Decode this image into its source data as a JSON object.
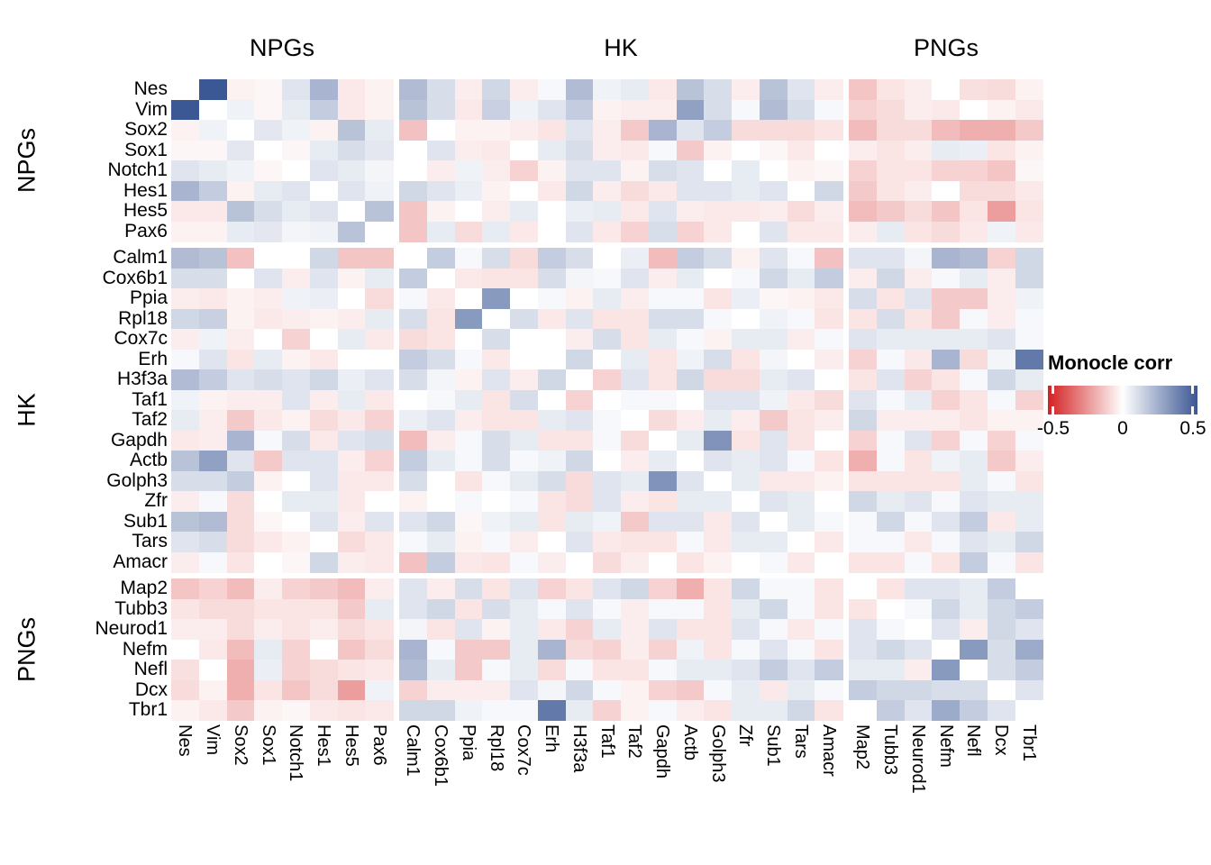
{
  "figure": {
    "top_group_labels": [
      "NPGs",
      "HK",
      "PNGs"
    ],
    "left_group_labels": [
      "NPGs",
      "HK",
      "PNGs"
    ]
  },
  "legend": {
    "title": "Monocle corr",
    "tick_labels": [
      "-0.5",
      "0",
      "0.5"
    ],
    "min_color": "#D32020",
    "mid_color": "#FFFFFF",
    "max_color": "#3B5794"
  },
  "chart_data": {
    "type": "heatmap",
    "title": "",
    "legend_title": "Monocle corr",
    "value_range": [
      -0.5,
      0.5
    ],
    "genes": [
      "Nes",
      "Vim",
      "Sox2",
      "Sox1",
      "Notch1",
      "Hes1",
      "Hes5",
      "Pax6",
      "Calm1",
      "Cox6b1",
      "Ppia",
      "Rpl18",
      "Cox7c",
      "Erh",
      "H3f3a",
      "Taf1",
      "Taf2",
      "Gapdh",
      "Actb",
      "Golph3",
      "Zfr",
      "Sub1",
      "Tars",
      "Amacr",
      "Map2",
      "Tubb3",
      "Neurod1",
      "Nefm",
      "Nefl",
      "Dcx",
      "Tbr1"
    ],
    "groups": [
      {
        "name": "NPGs",
        "genes": [
          "Nes",
          "Vim",
          "Sox2",
          "Sox1",
          "Notch1",
          "Hes1",
          "Hes5",
          "Pax6"
        ]
      },
      {
        "name": "HK",
        "genes": [
          "Calm1",
          "Cox6b1",
          "Ppia",
          "Rpl18",
          "Cox7c",
          "Erh",
          "H3f3a",
          "Taf1",
          "Taf2",
          "Gapdh",
          "Actb",
          "Golph3",
          "Zfr",
          "Sub1",
          "Tars",
          "Amacr"
        ]
      },
      {
        "name": "PNGs",
        "genes": [
          "Map2",
          "Tubb3",
          "Neurod1",
          "Nefm",
          "Nefl",
          "Dcx",
          "Tbr1"
        ]
      }
    ],
    "matrix": [
      [
        0,
        0.52,
        -0.03,
        -0.02,
        0.08,
        0.22,
        -0.05,
        -0.03,
        0.2,
        0.1,
        -0.04,
        0.12,
        -0.04,
        0.02,
        0.2,
        0.04,
        0.06,
        -0.05,
        0.18,
        0.1,
        -0.04,
        0.18,
        0.08,
        -0.04,
        -0.13,
        -0.06,
        -0.04,
        0.0,
        -0.07,
        -0.08,
        -0.03
      ],
      [
        0.52,
        0,
        0.04,
        -0.02,
        0.06,
        0.15,
        -0.05,
        -0.03,
        0.18,
        0.1,
        -0.05,
        0.14,
        0.04,
        0.08,
        0.15,
        -0.03,
        -0.04,
        -0.04,
        0.28,
        0.1,
        0.02,
        0.2,
        0.1,
        0.02,
        -0.1,
        -0.08,
        -0.04,
        -0.05,
        0.0,
        -0.03,
        -0.05
      ],
      [
        -0.03,
        0.04,
        0,
        0.07,
        0.04,
        -0.03,
        0.18,
        0.06,
        -0.14,
        0.0,
        -0.03,
        -0.03,
        -0.04,
        -0.06,
        0.08,
        -0.04,
        -0.12,
        0.22,
        0.08,
        0.15,
        -0.08,
        -0.08,
        -0.08,
        -0.06,
        -0.15,
        -0.08,
        -0.08,
        -0.15,
        -0.18,
        -0.18,
        -0.12
      ],
      [
        -0.02,
        -0.02,
        0.07,
        0,
        -0.02,
        0.06,
        0.1,
        0.07,
        0.0,
        0.08,
        -0.04,
        -0.05,
        0.0,
        0.06,
        0.1,
        -0.04,
        -0.05,
        0.02,
        -0.12,
        -0.03,
        0.0,
        -0.02,
        -0.05,
        0.0,
        -0.04,
        -0.06,
        -0.04,
        0.06,
        0.05,
        -0.06,
        -0.03
      ],
      [
        0.08,
        0.06,
        0.04,
        -0.02,
        0,
        0.08,
        0.06,
        0.03,
        0.0,
        -0.04,
        0.04,
        -0.04,
        -0.1,
        -0.03,
        0.08,
        0.08,
        -0.03,
        0.1,
        0.08,
        0.0,
        0.06,
        0.0,
        -0.03,
        -0.02,
        -0.1,
        -0.06,
        -0.06,
        -0.1,
        -0.1,
        -0.13,
        -0.02
      ],
      [
        0.22,
        0.15,
        -0.03,
        0.06,
        0.08,
        0,
        0.08,
        0.04,
        0.12,
        0.08,
        0.05,
        -0.03,
        0.0,
        -0.05,
        0.12,
        -0.04,
        -0.08,
        -0.05,
        0.08,
        0.08,
        0.06,
        0.08,
        0.0,
        0.12,
        -0.12,
        -0.06,
        -0.04,
        0.0,
        -0.08,
        -0.08,
        -0.05
      ],
      [
        -0.05,
        -0.05,
        0.18,
        0.1,
        0.06,
        0.08,
        0,
        0.18,
        -0.13,
        -0.03,
        0.0,
        -0.04,
        0.06,
        0.0,
        0.05,
        0.06,
        -0.05,
        0.08,
        -0.04,
        -0.05,
        -0.05,
        -0.04,
        -0.08,
        -0.04,
        -0.15,
        -0.12,
        -0.08,
        -0.13,
        -0.06,
        -0.22,
        -0.06
      ],
      [
        -0.03,
        -0.03,
        0.06,
        0.07,
        0.03,
        0.04,
        0.18,
        0,
        -0.13,
        0.06,
        -0.08,
        0.06,
        -0.05,
        0.0,
        0.08,
        -0.05,
        -0.1,
        0.1,
        -0.1,
        -0.05,
        0.0,
        0.08,
        -0.05,
        -0.05,
        -0.04,
        0.06,
        -0.06,
        -0.08,
        -0.05,
        0.04,
        -0.05
      ],
      [
        0.2,
        0.18,
        -0.14,
        0.0,
        0.0,
        0.12,
        -0.13,
        -0.13,
        0,
        0.15,
        0.02,
        0.1,
        -0.08,
        0.15,
        0.1,
        0.0,
        0.05,
        -0.15,
        0.15,
        0.1,
        -0.03,
        0.08,
        0.02,
        -0.14,
        0.08,
        0.08,
        0.03,
        0.22,
        0.2,
        -0.1,
        0.12
      ],
      [
        0.1,
        0.1,
        0.0,
        0.08,
        -0.04,
        0.08,
        -0.03,
        0.06,
        0.15,
        0,
        -0.05,
        -0.06,
        -0.06,
        0.1,
        0.03,
        0.02,
        0.08,
        -0.04,
        0.06,
        0.0,
        0.02,
        0.12,
        0.06,
        0.15,
        -0.04,
        0.12,
        -0.04,
        0.02,
        0.06,
        -0.04,
        0.12
      ],
      [
        -0.04,
        -0.05,
        -0.03,
        -0.04,
        0.04,
        0.05,
        0.0,
        -0.08,
        0.02,
        -0.05,
        0,
        0.3,
        0.0,
        0.02,
        -0.03,
        0.06,
        -0.04,
        0.02,
        0.02,
        -0.06,
        0.05,
        -0.02,
        -0.03,
        -0.05,
        0.1,
        -0.06,
        0.08,
        -0.12,
        -0.12,
        -0.04,
        0.04
      ],
      [
        0.12,
        0.14,
        -0.03,
        -0.05,
        -0.04,
        -0.03,
        -0.04,
        0.06,
        0.1,
        -0.06,
        0.3,
        0,
        0.1,
        -0.05,
        0.08,
        -0.06,
        -0.06,
        0.1,
        0.1,
        0.02,
        0.0,
        0.04,
        0.02,
        -0.06,
        -0.06,
        0.1,
        -0.06,
        -0.12,
        0.02,
        -0.04,
        0.02
      ],
      [
        -0.04,
        0.04,
        -0.04,
        0.0,
        -0.1,
        0.0,
        0.06,
        -0.05,
        -0.08,
        -0.06,
        0.0,
        0.1,
        0,
        0.0,
        -0.04,
        0.1,
        -0.06,
        0.06,
        0.02,
        -0.03,
        0.06,
        0.06,
        -0.04,
        0.02,
        0.08,
        0.06,
        0.06,
        0.06,
        0.06,
        0.08,
        0.02
      ],
      [
        0.02,
        0.08,
        -0.06,
        0.06,
        -0.03,
        -0.05,
        0.0,
        0.0,
        0.15,
        0.1,
        0.02,
        -0.05,
        0.0,
        0,
        0.12,
        0.0,
        0.06,
        -0.06,
        0.04,
        0.1,
        -0.06,
        0.03,
        0.0,
        -0.04,
        -0.1,
        0.02,
        -0.05,
        0.22,
        -0.08,
        0.03,
        0.4
      ],
      [
        0.2,
        0.15,
        0.08,
        0.1,
        0.08,
        0.12,
        0.05,
        0.08,
        0.1,
        0.03,
        -0.03,
        0.08,
        -0.04,
        0.12,
        0,
        -0.1,
        0.08,
        -0.06,
        0.12,
        -0.08,
        -0.08,
        0.06,
        0.08,
        0.0,
        -0.06,
        0.08,
        -0.1,
        -0.06,
        0.02,
        0.12,
        0.06
      ],
      [
        0.04,
        -0.03,
        -0.04,
        -0.04,
        0.08,
        -0.04,
        0.06,
        -0.05,
        0.0,
        0.02,
        0.06,
        -0.06,
        0.1,
        0.0,
        -0.1,
        0,
        0.02,
        0.02,
        0.0,
        0.08,
        0.08,
        0.04,
        -0.05,
        -0.08,
        0.08,
        0.02,
        0.06,
        -0.1,
        -0.06,
        0.02,
        -0.1
      ],
      [
        0.06,
        -0.04,
        -0.12,
        -0.05,
        -0.03,
        -0.08,
        -0.05,
        -0.1,
        0.05,
        0.08,
        -0.04,
        -0.06,
        -0.06,
        0.06,
        0.08,
        0.02,
        0,
        -0.08,
        -0.04,
        0.06,
        -0.04,
        -0.12,
        -0.06,
        -0.04,
        0.12,
        -0.04,
        -0.04,
        -0.04,
        -0.06,
        -0.03,
        -0.03
      ],
      [
        -0.05,
        -0.04,
        0.22,
        0.02,
        0.1,
        -0.05,
        0.08,
        0.1,
        -0.15,
        -0.04,
        0.02,
        0.1,
        0.06,
        -0.06,
        -0.06,
        0.02,
        -0.08,
        0,
        0.06,
        0.32,
        -0.06,
        0.08,
        -0.06,
        0.0,
        -0.1,
        0.02,
        0.08,
        -0.1,
        0.02,
        -0.1,
        0.02
      ],
      [
        0.18,
        0.28,
        0.08,
        -0.12,
        0.08,
        0.08,
        -0.04,
        -0.1,
        0.15,
        0.06,
        0.02,
        0.1,
        0.02,
        0.04,
        0.12,
        0.0,
        -0.04,
        0.06,
        0,
        0.08,
        0.06,
        0.08,
        0.02,
        -0.06,
        -0.18,
        0.02,
        -0.06,
        0.04,
        0.06,
        -0.12,
        -0.04
      ],
      [
        0.1,
        0.1,
        0.15,
        -0.03,
        0.0,
        0.08,
        -0.05,
        -0.05,
        0.1,
        0.0,
        -0.06,
        0.02,
        0.06,
        0.1,
        -0.08,
        0.08,
        0.06,
        0.32,
        0.08,
        0,
        0.06,
        -0.05,
        -0.05,
        -0.03,
        -0.06,
        -0.06,
        -0.06,
        -0.06,
        0.06,
        0.02,
        -0.06
      ],
      [
        -0.04,
        0.02,
        -0.08,
        0.0,
        0.06,
        0.06,
        -0.05,
        0.0,
        -0.03,
        0.0,
        0.02,
        0.0,
        0.02,
        -0.06,
        -0.08,
        0.08,
        -0.04,
        -0.06,
        0.06,
        0.06,
        0,
        0.08,
        0.06,
        0.0,
        0.12,
        0.06,
        0.08,
        0.02,
        0.08,
        0.06,
        0.06
      ],
      [
        0.18,
        0.2,
        -0.08,
        -0.02,
        0.0,
        0.08,
        -0.04,
        0.08,
        0.08,
        0.12,
        -0.02,
        0.04,
        0.06,
        -0.06,
        0.06,
        0.04,
        -0.12,
        0.08,
        0.08,
        -0.05,
        0.08,
        0,
        0.06,
        0.02,
        0.02,
        0.12,
        0.02,
        0.08,
        0.15,
        -0.05,
        0.06
      ],
      [
        0.08,
        0.1,
        -0.08,
        -0.05,
        -0.03,
        0.0,
        -0.08,
        -0.05,
        0.02,
        0.06,
        -0.03,
        0.02,
        -0.04,
        0.0,
        0.08,
        -0.05,
        -0.06,
        -0.06,
        0.02,
        -0.05,
        0.06,
        0.06,
        0,
        -0.05,
        0.02,
        0.02,
        -0.05,
        0.02,
        0.08,
        0.06,
        0.12
      ],
      [
        -0.04,
        0.02,
        -0.06,
        0.0,
        -0.02,
        0.12,
        -0.04,
        -0.05,
        -0.14,
        0.15,
        -0.05,
        -0.06,
        0.02,
        -0.04,
        0.0,
        -0.08,
        -0.04,
        0.0,
        -0.06,
        -0.03,
        0.0,
        0.02,
        -0.05,
        0,
        -0.06,
        -0.06,
        0.02,
        -0.06,
        0.15,
        0.02,
        -0.06
      ],
      [
        -0.13,
        -0.1,
        -0.15,
        -0.04,
        -0.1,
        -0.12,
        -0.15,
        -0.04,
        0.08,
        -0.04,
        0.1,
        -0.06,
        0.08,
        -0.1,
        -0.06,
        0.08,
        0.12,
        -0.1,
        -0.18,
        -0.06,
        0.12,
        0.02,
        0.02,
        -0.06,
        0,
        -0.06,
        0.08,
        0.08,
        0.06,
        0.15,
        0.0
      ],
      [
        -0.06,
        -0.08,
        -0.08,
        -0.06,
        -0.06,
        -0.06,
        -0.12,
        0.06,
        0.08,
        0.12,
        -0.06,
        0.1,
        0.06,
        0.02,
        0.08,
        0.02,
        -0.04,
        0.02,
        0.02,
        -0.06,
        0.06,
        0.12,
        0.02,
        -0.06,
        -0.06,
        0,
        0.02,
        0.12,
        0.06,
        0.12,
        0.15
      ],
      [
        -0.04,
        -0.04,
        -0.08,
        -0.04,
        -0.06,
        -0.04,
        -0.08,
        -0.06,
        0.03,
        -0.06,
        0.08,
        -0.03,
        0.06,
        -0.05,
        -0.1,
        0.06,
        -0.04,
        0.08,
        -0.06,
        -0.06,
        0.08,
        0.02,
        -0.05,
        0.02,
        0.08,
        0.02,
        0,
        0.08,
        -0.04,
        0.12,
        0.08
      ],
      [
        0.0,
        -0.05,
        -0.15,
        0.06,
        -0.1,
        0.0,
        -0.13,
        -0.08,
        0.22,
        0.02,
        -0.12,
        -0.12,
        0.06,
        0.22,
        -0.08,
        -0.1,
        -0.04,
        -0.1,
        0.04,
        -0.06,
        0.02,
        0.08,
        0.02,
        -0.06,
        0.08,
        0.12,
        0.08,
        0,
        0.3,
        0.1,
        0.25
      ],
      [
        -0.07,
        0.0,
        -0.18,
        0.05,
        -0.1,
        -0.08,
        -0.06,
        -0.05,
        0.2,
        0.06,
        -0.12,
        0.02,
        0.06,
        -0.08,
        0.02,
        -0.06,
        -0.06,
        0.02,
        0.06,
        0.06,
        0.08,
        0.15,
        0.08,
        0.15,
        0.06,
        0.06,
        -0.04,
        0.3,
        0,
        0.1,
        0.15
      ],
      [
        -0.08,
        -0.03,
        -0.18,
        -0.06,
        -0.13,
        -0.08,
        -0.22,
        0.04,
        -0.1,
        -0.04,
        -0.04,
        -0.04,
        0.08,
        0.03,
        0.12,
        0.02,
        -0.03,
        -0.1,
        -0.12,
        0.02,
        0.06,
        -0.05,
        0.06,
        0.02,
        0.15,
        0.12,
        0.12,
        0.1,
        0.1,
        0,
        0.08
      ],
      [
        -0.03,
        -0.05,
        -0.12,
        -0.03,
        -0.02,
        -0.05,
        -0.06,
        -0.05,
        0.12,
        0.12,
        0.04,
        0.02,
        0.02,
        0.4,
        0.06,
        -0.1,
        -0.03,
        0.02,
        -0.04,
        -0.06,
        0.06,
        0.06,
        0.12,
        -0.06,
        0.0,
        0.15,
        0.08,
        0.25,
        0.15,
        0.08,
        0
      ]
    ]
  }
}
